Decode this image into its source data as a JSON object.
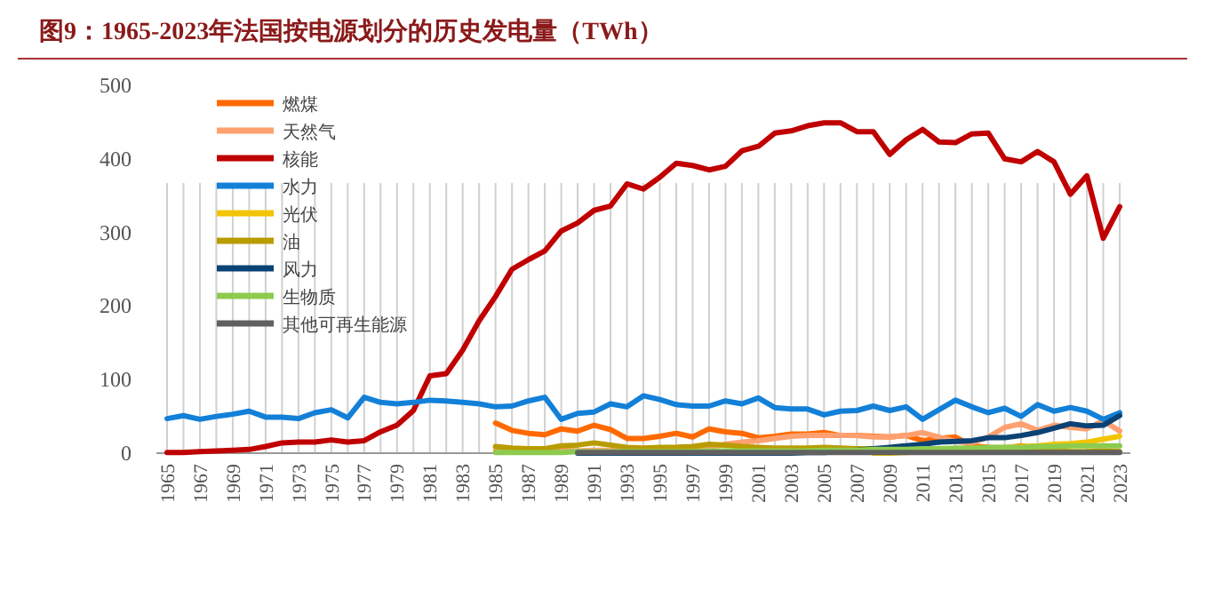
{
  "chart_data": {
    "type": "line",
    "title": "图9：1965-2023年法国按电源划分的历史发电量（TWh）",
    "categories": [
      "1965",
      null,
      "1967",
      null,
      "1969",
      null,
      "1971",
      null,
      "1973",
      null,
      "1975",
      null,
      "1977",
      null,
      "1979",
      null,
      "1981",
      null,
      "1983",
      null,
      "1985",
      null,
      "1987",
      null,
      "1989",
      null,
      "1991",
      null,
      "1993",
      null,
      "1995",
      null,
      "1997",
      null,
      "1999",
      null,
      "2001",
      null,
      "2003",
      null,
      "2005",
      null,
      "2007",
      null,
      "2009",
      null,
      "2011",
      null,
      "2013",
      null,
      "2015",
      null,
      "2017",
      null,
      "2019",
      null,
      "2021",
      null,
      "2023"
    ],
    "ylim": [
      0,
      500
    ],
    "yticks": [
      0,
      100,
      200,
      300,
      400,
      500
    ],
    "grid": "x",
    "legend": "top left",
    "marker": "none",
    "line_style": "solid",
    "series": [
      {
        "name": "燃煤",
        "color": "#ff6a00",
        "values": [
          null,
          null,
          null,
          null,
          null,
          null,
          null,
          null,
          null,
          null,
          null,
          null,
          null,
          null,
          null,
          null,
          null,
          null,
          null,
          null,
          41,
          31,
          27,
          25,
          33,
          30,
          38,
          32,
          20,
          20,
          23,
          27,
          22,
          33,
          29,
          27,
          21,
          23,
          26,
          26,
          28,
          24,
          24,
          23,
          22,
          24,
          17,
          20,
          22,
          10,
          8,
          7,
          10,
          6,
          null,
          null,
          null,
          null,
          null
        ]
      },
      {
        "name": "天然气",
        "color": "#ffa070",
        "values": [
          null,
          null,
          null,
          null,
          null,
          null,
          null,
          null,
          null,
          null,
          null,
          null,
          null,
          null,
          null,
          null,
          null,
          null,
          null,
          null,
          3,
          2,
          2,
          2,
          4,
          3,
          4,
          4,
          4,
          4,
          4,
          5,
          6,
          8,
          12,
          15,
          17,
          20,
          23,
          24,
          24,
          24,
          24,
          22,
          22,
          24,
          28,
          22,
          16,
          14,
          22,
          35,
          40,
          31,
          38,
          35,
          33,
          44,
          30
        ]
      },
      {
        "name": "核能",
        "color": "#c00000",
        "values": [
          1,
          1,
          2,
          3,
          4,
          5,
          9,
          14,
          15,
          15,
          18,
          15,
          17,
          29,
          38,
          58,
          105,
          108,
          140,
          180,
          213,
          250,
          263,
          275,
          302,
          313,
          330,
          336,
          366,
          359,
          375,
          394,
          391,
          385,
          390,
          411,
          417,
          435,
          438,
          445,
          449,
          449,
          437,
          437,
          406,
          426,
          440,
          423,
          422,
          434,
          435,
          400,
          396,
          410,
          396,
          352,
          377,
          292,
          335
        ]
      },
      {
        "name": "水力",
        "color": "#1380d8",
        "values": [
          47,
          51,
          46,
          50,
          53,
          57,
          49,
          49,
          47,
          55,
          59,
          48,
          76,
          69,
          67,
          69,
          72,
          71,
          69,
          67,
          63,
          64,
          71,
          76,
          46,
          54,
          56,
          67,
          63,
          78,
          73,
          66,
          64,
          64,
          71,
          67,
          75,
          62,
          60,
          60,
          52,
          57,
          58,
          64,
          58,
          63,
          46,
          59,
          72,
          63,
          55,
          61,
          50,
          66,
          57,
          62,
          57,
          46,
          55
        ]
      },
      {
        "name": "光伏",
        "color": "#f2c500",
        "values": [
          null,
          null,
          null,
          null,
          null,
          null,
          null,
          null,
          null,
          null,
          null,
          null,
          null,
          null,
          null,
          null,
          null,
          null,
          null,
          null,
          null,
          null,
          null,
          null,
          null,
          null,
          null,
          null,
          null,
          null,
          null,
          null,
          null,
          null,
          null,
          null,
          null,
          null,
          null,
          null,
          null,
          null,
          null,
          0,
          0,
          1,
          2,
          4,
          5,
          6,
          7,
          8,
          9,
          10,
          12,
          13,
          15,
          19,
          23
        ]
      },
      {
        "name": "油",
        "color": "#b89c00",
        "values": [
          null,
          null,
          null,
          null,
          null,
          null,
          null,
          null,
          null,
          null,
          null,
          null,
          null,
          null,
          null,
          null,
          null,
          null,
          null,
          null,
          9,
          7,
          6,
          6,
          10,
          11,
          14,
          11,
          8,
          7,
          8,
          8,
          9,
          12,
          11,
          9,
          8,
          7,
          7,
          7,
          8,
          7,
          6,
          6,
          6,
          6,
          5,
          5,
          5,
          4,
          3,
          3,
          3,
          3,
          3,
          2,
          2,
          3,
          2
        ]
      },
      {
        "name": "风力",
        "color": "#0b4275",
        "values": [
          null,
          null,
          null,
          null,
          null,
          null,
          null,
          null,
          null,
          null,
          null,
          null,
          null,
          null,
          null,
          null,
          null,
          null,
          null,
          null,
          null,
          null,
          null,
          null,
          null,
          0,
          0,
          0,
          0,
          0,
          0,
          0,
          0,
          0,
          0,
          0,
          0,
          0,
          0,
          1,
          1,
          2,
          4,
          6,
          8,
          10,
          12,
          15,
          16,
          17,
          21,
          21,
          24,
          28,
          34,
          40,
          37,
          38,
          51
        ]
      },
      {
        "name": "生物质",
        "color": "#8dcb4e",
        "values": [
          null,
          null,
          null,
          null,
          null,
          null,
          null,
          null,
          null,
          null,
          null,
          null,
          null,
          null,
          null,
          null,
          null,
          null,
          null,
          null,
          1,
          1,
          1,
          1,
          1,
          2,
          2,
          2,
          2,
          2,
          2,
          2,
          2,
          3,
          3,
          3,
          3,
          3,
          3,
          3,
          4,
          4,
          4,
          5,
          5,
          5,
          6,
          6,
          7,
          7,
          8,
          8,
          8,
          9,
          9,
          10,
          10,
          10,
          10
        ]
      },
      {
        "name": "其他可再生能源",
        "color": "#606060",
        "values": [
          null,
          null,
          null,
          null,
          null,
          null,
          null,
          null,
          null,
          null,
          null,
          null,
          null,
          null,
          null,
          null,
          null,
          null,
          null,
          null,
          null,
          null,
          null,
          null,
          null,
          1,
          1,
          1,
          1,
          1,
          1,
          1,
          1,
          1,
          1,
          1,
          1,
          1,
          1,
          1,
          1,
          1,
          1,
          1,
          1,
          1,
          1,
          1,
          1,
          1,
          1,
          1,
          1,
          1,
          1,
          1,
          1,
          1,
          1
        ]
      }
    ]
  }
}
